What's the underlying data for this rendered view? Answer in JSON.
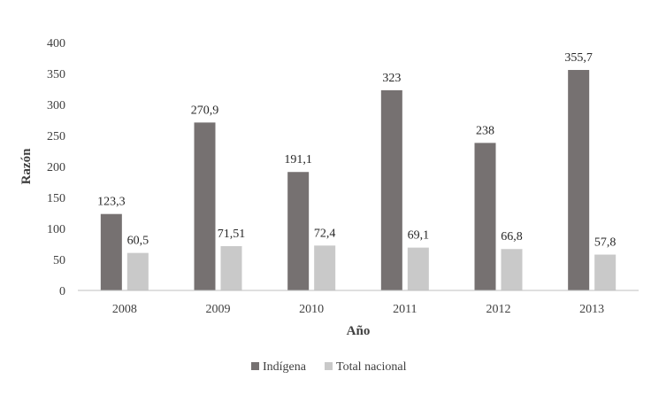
{
  "chart_data": {
    "type": "bar",
    "title": "",
    "xlabel": "Año",
    "ylabel": "Razón",
    "categories": [
      "2008",
      "2009",
      "2010",
      "2011",
      "2012",
      "2013"
    ],
    "series": [
      {
        "name": "Indígena",
        "color": "#767171",
        "values": [
          123.3,
          270.9,
          191.1,
          323,
          238,
          355.7
        ],
        "labels": [
          "123,3",
          "270,9",
          "191,1",
          "323",
          "238",
          "355,7"
        ]
      },
      {
        "name": "Total nacional",
        "color": "#c9c9c9",
        "values": [
          60.5,
          71.51,
          72.4,
          69.1,
          66.8,
          57.8
        ],
        "labels": [
          "60,5",
          "71,51",
          "72,4",
          "69,1",
          "66,8",
          "57,8"
        ]
      }
    ],
    "ylim": [
      0,
      400
    ],
    "yticks": [
      0,
      50,
      100,
      150,
      200,
      250,
      300,
      350,
      400
    ],
    "grid": false,
    "legend_position": "bottom"
  }
}
